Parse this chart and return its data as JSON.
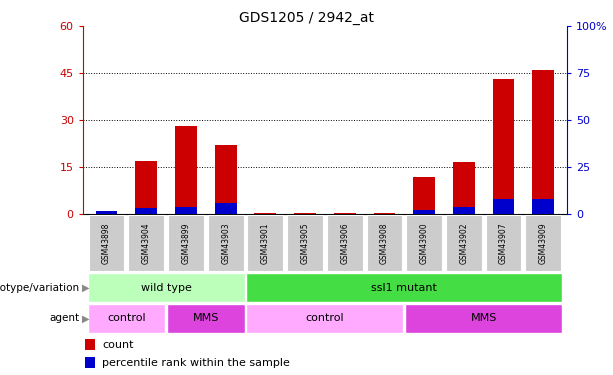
{
  "title": "GDS1205 / 2942_at",
  "samples": [
    "GSM43898",
    "GSM43904",
    "GSM43899",
    "GSM43903",
    "GSM43901",
    "GSM43905",
    "GSM43906",
    "GSM43908",
    "GSM43900",
    "GSM43902",
    "GSM43907",
    "GSM43909"
  ],
  "count_values": [
    1.0,
    17.0,
    28.0,
    22.0,
    0.2,
    0.2,
    0.2,
    0.2,
    12.0,
    16.5,
    43.0,
    46.0
  ],
  "percentile_values": [
    1.5,
    3.0,
    4.0,
    6.0,
    0.1,
    0.1,
    0.1,
    0.1,
    2.0,
    4.0,
    8.0,
    8.0
  ],
  "count_color": "#cc0000",
  "percentile_color": "#0000cc",
  "bar_width": 0.55,
  "ylim_left": [
    0,
    60
  ],
  "ylim_right": [
    0,
    100
  ],
  "yticks_left": [
    0,
    15,
    30,
    45,
    60
  ],
  "yticks_right": [
    0,
    25,
    50,
    75,
    100
  ],
  "ytick_labels_left": [
    "0",
    "15",
    "30",
    "45",
    "60"
  ],
  "ytick_labels_right": [
    "0",
    "25",
    "50",
    "75",
    "100%"
  ],
  "genotype_groups": [
    {
      "label": "wild type",
      "start": 0,
      "end": 3,
      "color": "#bbffbb"
    },
    {
      "label": "ssl1 mutant",
      "start": 4,
      "end": 11,
      "color": "#44dd44"
    }
  ],
  "agent_groups": [
    {
      "label": "control",
      "start": 0,
      "end": 1,
      "color": "#ffaaff"
    },
    {
      "label": "MMS",
      "start": 2,
      "end": 3,
      "color": "#dd44dd"
    },
    {
      "label": "control",
      "start": 4,
      "end": 7,
      "color": "#ffaaff"
    },
    {
      "label": "MMS",
      "start": 8,
      "end": 11,
      "color": "#dd44dd"
    }
  ],
  "row_label_genotype": "genotype/variation",
  "row_label_agent": "agent",
  "legend_count": "count",
  "legend_percentile": "percentile rank within the sample",
  "left_axis_color": "#cc0000",
  "right_axis_color": "#0000cc",
  "bg_color": "#ffffff",
  "plot_bg": "#ffffff",
  "tick_label_bg": "#cccccc",
  "dotted_ticks": [
    15,
    30,
    45
  ]
}
